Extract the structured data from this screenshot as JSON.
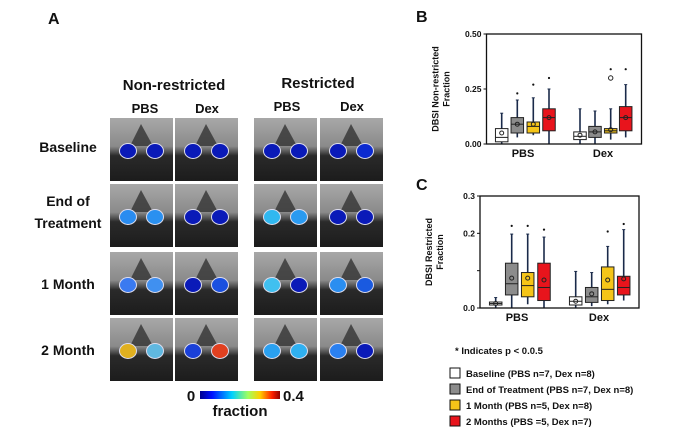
{
  "panels": {
    "a": "A",
    "b": "B",
    "c": "C"
  },
  "images": {
    "column_groups": [
      "Non-restricted",
      "Restricted"
    ],
    "columns": [
      "PBS",
      "Dex",
      "PBS",
      "Dex"
    ],
    "rows": [
      {
        "label_lines": [
          "Baseline"
        ],
        "blobs": [
          [
            "#0a1ab8",
            "#0a1ab8"
          ],
          [
            "#0a1ab8",
            "#0a1ab8"
          ],
          [
            "#0a1ab8",
            "#0a1ab8"
          ],
          [
            "#0a1ab8",
            "#0c2ad0"
          ]
        ]
      },
      {
        "label_lines": [
          "End of",
          "Treatment"
        ],
        "blobs": [
          [
            "#2a8cf0",
            "#2a90f0"
          ],
          [
            "#0a1ab8",
            "#0a1ab8"
          ],
          [
            "#30b8f0",
            "#2a9af0"
          ],
          [
            "#0a1ab8",
            "#0a1ab8"
          ]
        ]
      },
      {
        "label_lines": [
          "1 Month"
        ],
        "blobs": [
          [
            "#3a7af0",
            "#4090f0"
          ],
          [
            "#0a1ab8",
            "#1a50e0"
          ],
          [
            "#40c0f0",
            "#0a1ab8"
          ],
          [
            "#2a8ef0",
            "#1a5ae0"
          ]
        ]
      },
      {
        "label_lines": [
          "2 Month"
        ],
        "blobs": [
          [
            "#e0b020",
            "#60b8e0"
          ],
          [
            "#1a40d8",
            "#e04020"
          ],
          [
            "#2aa0f0",
            "#30b0f0"
          ],
          [
            "#2a80f0",
            "#0a1ab8"
          ]
        ]
      }
    ],
    "colorbar": {
      "min_label": "0",
      "max_label": "0.4",
      "label": "fraction"
    }
  },
  "chart_data": [
    {
      "type": "box",
      "panel": "B",
      "ylabel": [
        "DBSI Non-restricted",
        "Fraction"
      ],
      "ylim": [
        0,
        0.5
      ],
      "yticks": [
        {
          "v": 0,
          "label": "0.00"
        },
        {
          "v": 0.25,
          "label": "0.25"
        },
        {
          "v": 0.5,
          "label": "0.50"
        }
      ],
      "groups": [
        "PBS",
        "Dex"
      ],
      "series": [
        {
          "name": "Baseline",
          "boxes": [
            {
              "lo": 0.0,
              "q1": 0.01,
              "med": 0.03,
              "q3": 0.07,
              "hi": 0.14,
              "mean": 0.05,
              "outliers": [],
              "sig": false
            },
            {
              "lo": 0.0,
              "q1": 0.02,
              "med": 0.035,
              "q3": 0.055,
              "hi": 0.16,
              "mean": 0.04,
              "outliers": [],
              "sig": false
            }
          ]
        },
        {
          "name": "End of Treatment",
          "boxes": [
            {
              "lo": 0.03,
              "q1": 0.05,
              "med": 0.09,
              "q3": 0.12,
              "hi": 0.2,
              "mean": 0.09,
              "outliers": [],
              "sig": true,
              "star": 0.23
            },
            {
              "lo": 0.0,
              "q1": 0.03,
              "med": 0.055,
              "q3": 0.08,
              "hi": 0.15,
              "mean": 0.055,
              "outliers": [],
              "sig": false
            }
          ]
        },
        {
          "name": "1 Month",
          "boxes": [
            {
              "lo": 0.04,
              "q1": 0.05,
              "med": 0.08,
              "q3": 0.1,
              "hi": 0.21,
              "mean": 0.09,
              "outliers": [],
              "sig": true,
              "star": 0.27
            },
            {
              "lo": 0.02,
              "q1": 0.05,
              "med": 0.06,
              "q3": 0.07,
              "hi": 0.16,
              "mean": 0.065,
              "outliers": [
                0.3
              ],
              "sig": true,
              "star": 0.34
            }
          ]
        },
        {
          "name": "2 Months",
          "boxes": [
            {
              "lo": 0.0,
              "q1": 0.06,
              "med": 0.12,
              "q3": 0.16,
              "hi": 0.25,
              "mean": 0.12,
              "outliers": [],
              "sig": true,
              "star": 0.3
            },
            {
              "lo": 0.03,
              "q1": 0.06,
              "med": 0.12,
              "q3": 0.17,
              "hi": 0.27,
              "mean": 0.12,
              "outliers": [],
              "sig": true,
              "star": 0.34
            }
          ]
        }
      ]
    },
    {
      "type": "box",
      "panel": "C",
      "ylabel": [
        "DBSI Restricted",
        "Fraction"
      ],
      "ylim": [
        0,
        0.3
      ],
      "yticks": [
        {
          "v": 0,
          "label": "0.0"
        },
        {
          "v": 0.1,
          "label": ""
        },
        {
          "v": 0.2,
          "label": "0.2"
        },
        {
          "v": 0.3,
          "label": "0.3"
        }
      ],
      "groups": [
        "PBS",
        "Dex"
      ],
      "series": [
        {
          "name": "Baseline",
          "boxes": [
            {
              "lo": 0.0,
              "q1": 0.008,
              "med": 0.012,
              "q3": 0.016,
              "hi": 0.028,
              "mean": 0.012,
              "outliers": [],
              "sig": false
            },
            {
              "lo": 0.0,
              "q1": 0.008,
              "med": 0.018,
              "q3": 0.03,
              "hi": 0.098,
              "mean": 0.018,
              "outliers": [],
              "sig": false
            }
          ]
        },
        {
          "name": "End of Treatment",
          "boxes": [
            {
              "lo": 0.0,
              "q1": 0.035,
              "med": 0.065,
              "q3": 0.12,
              "hi": 0.198,
              "mean": 0.08,
              "outliers": [],
              "sig": true,
              "star": 0.22
            },
            {
              "lo": 0.005,
              "q1": 0.015,
              "med": 0.03,
              "q3": 0.055,
              "hi": 0.095,
              "mean": 0.038,
              "outliers": [],
              "sig": false
            }
          ]
        },
        {
          "name": "1 Month",
          "boxes": [
            {
              "lo": 0.01,
              "q1": 0.03,
              "med": 0.06,
              "q3": 0.095,
              "hi": 0.198,
              "mean": 0.08,
              "outliers": [],
              "sig": true,
              "star": 0.22
            },
            {
              "lo": 0.01,
              "q1": 0.02,
              "med": 0.05,
              "q3": 0.11,
              "hi": 0.165,
              "mean": 0.075,
              "outliers": [],
              "sig": true,
              "star": 0.205
            }
          ]
        },
        {
          "name": "2 Months",
          "boxes": [
            {
              "lo": 0.0,
              "q1": 0.02,
              "med": 0.055,
              "q3": 0.12,
              "hi": 0.19,
              "mean": 0.075,
              "outliers": [],
              "sig": true,
              "star": 0.21
            },
            {
              "lo": 0.02,
              "q1": 0.035,
              "med": 0.055,
              "q3": 0.085,
              "hi": 0.21,
              "mean": 0.078,
              "outliers": [],
              "sig": true,
              "star": 0.225
            }
          ]
        }
      ]
    }
  ],
  "series_colors": [
    "#ffffff",
    "#8c8c8c",
    "#f5c518",
    "#e8141c"
  ],
  "legend": {
    "note": "* Indicates p < 0.0.5",
    "items": [
      {
        "label": "Baseline (PBS n=7, Dex n=8)",
        "color": "#ffffff"
      },
      {
        "label": "End of Treatment (PBS n=7, Dex n=8)",
        "color": "#8c8c8c"
      },
      {
        "label": "1 Month (PBS n=5, Dex n=8)",
        "color": "#f5c518"
      },
      {
        "label": "2 Months (PBS =5, Dex n=7)",
        "color": "#e8141c"
      }
    ]
  }
}
